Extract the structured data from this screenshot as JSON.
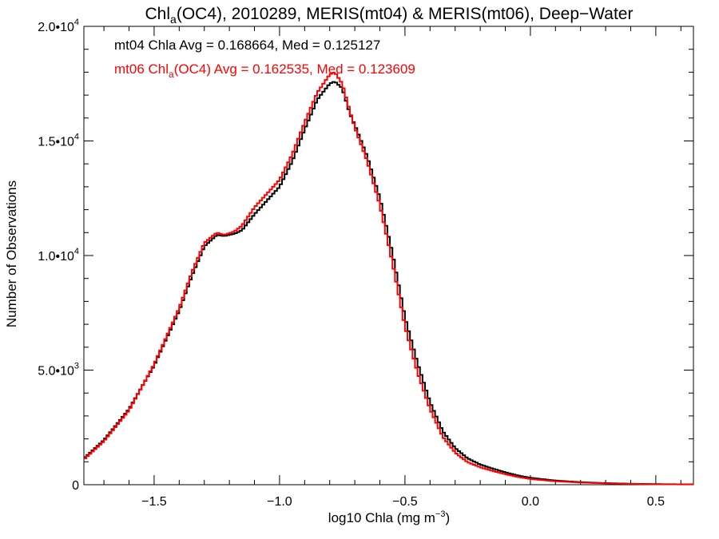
{
  "chart_data": {
    "type": "line",
    "step": true,
    "title": {
      "prefix": "Chl",
      "sub": "a",
      "rest": "(OC4), 2010289, MERIS(mt04) & MERIS(mt06), Deep−Water"
    },
    "xlabel": {
      "prefix": "log10 Chla (mg m",
      "sup": "−3",
      "suffix": ")"
    },
    "ylabel": "Number of Observations",
    "xlim": [
      -1.78,
      0.65
    ],
    "ylim": [
      0,
      20000
    ],
    "grid": false,
    "x_ticks": [
      {
        "value": -1.5,
        "label": "−1.5"
      },
      {
        "value": -1.0,
        "label": "−1.0"
      },
      {
        "value": -0.5,
        "label": "−0.5"
      },
      {
        "value": 0.0,
        "label": "0.0"
      },
      {
        "value": 0.5,
        "label": "0.5"
      }
    ],
    "y_ticks": [
      {
        "value": 0,
        "mant": "0",
        "exp": ""
      },
      {
        "value": 5000,
        "mant": "5.0•10",
        "exp": "3"
      },
      {
        "value": 10000,
        "mant": "1.0•10",
        "exp": "4"
      },
      {
        "value": 15000,
        "mant": "1.5•10",
        "exp": "4"
      },
      {
        "value": 20000,
        "mant": "2.0•10",
        "exp": "4"
      }
    ],
    "annotations": [
      {
        "series": "mt04",
        "parts": [
          {
            "t": "mt04 Chla Avg = 0.168664, Med = 0.125127"
          }
        ]
      },
      {
        "series": "mt06",
        "parts": [
          {
            "t": "mt06 Chl"
          },
          {
            "t": "a",
            "sub": true
          },
          {
            "t": "(OC4) Avg = 0.162535, Med = 0.123609"
          }
        ]
      }
    ],
    "series": [
      {
        "name": "mt04",
        "color": "#000000",
        "x": [
          -1.78,
          -1.7,
          -1.6,
          -1.5,
          -1.4,
          -1.35,
          -1.3,
          -1.25,
          -1.22,
          -1.18,
          -1.15,
          -1.1,
          -1.05,
          -1.0,
          -0.95,
          -0.9,
          -0.85,
          -0.8,
          -0.78,
          -0.75,
          -0.72,
          -0.7,
          -0.65,
          -0.6,
          -0.55,
          -0.5,
          -0.45,
          -0.4,
          -0.35,
          -0.3,
          -0.25,
          -0.2,
          -0.15,
          -0.1,
          -0.05,
          0.0,
          0.1,
          0.2,
          0.3,
          0.4,
          0.5,
          0.65
        ],
        "y": [
          1150,
          1950,
          3300,
          5200,
          7600,
          9100,
          10400,
          10900,
          10850,
          10950,
          11100,
          11800,
          12400,
          13000,
          14100,
          15500,
          16800,
          17500,
          17600,
          17300,
          16200,
          15700,
          14300,
          12500,
          10100,
          7300,
          5300,
          3600,
          2350,
          1600,
          1150,
          880,
          700,
          540,
          400,
          300,
          180,
          110,
          70,
          40,
          25,
          15
        ]
      },
      {
        "name": "mt06",
        "color": "#ff0000",
        "x": [
          -1.78,
          -1.7,
          -1.6,
          -1.5,
          -1.4,
          -1.35,
          -1.3,
          -1.25,
          -1.22,
          -1.18,
          -1.15,
          -1.1,
          -1.05,
          -1.0,
          -0.95,
          -0.9,
          -0.85,
          -0.8,
          -0.78,
          -0.75,
          -0.72,
          -0.7,
          -0.65,
          -0.6,
          -0.55,
          -0.5,
          -0.45,
          -0.4,
          -0.35,
          -0.3,
          -0.25,
          -0.2,
          -0.15,
          -0.1,
          -0.05,
          0.0,
          0.1,
          0.2,
          0.3,
          0.4,
          0.5,
          0.65
        ],
        "y": [
          1100,
          1900,
          3250,
          5250,
          7700,
          9250,
          10550,
          11000,
          10900,
          11050,
          11300,
          12100,
          12700,
          13300,
          14400,
          15800,
          17100,
          17900,
          18000,
          17500,
          16300,
          15600,
          14100,
          12200,
          9700,
          6900,
          4900,
          3300,
          2100,
          1400,
          980,
          760,
          600,
          460,
          340,
          250,
          150,
          95,
          60,
          35,
          20,
          12
        ]
      }
    ]
  }
}
